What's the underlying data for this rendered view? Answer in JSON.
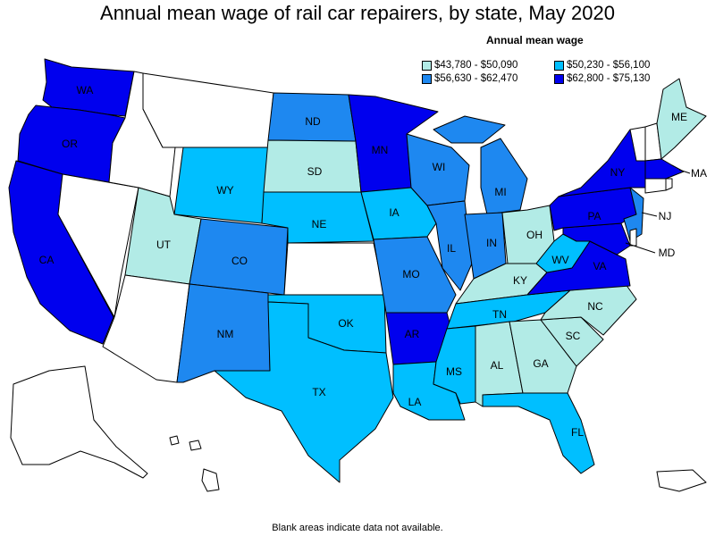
{
  "title": "Annual mean wage of rail car repairers, by state, May 2020",
  "legend": {
    "title": "Annual mean wage",
    "items": [
      {
        "label": "$43,780 - $50,090",
        "color": "#b2ebe6"
      },
      {
        "label": "$50,230 - $56,100",
        "color": "#00bfff"
      },
      {
        "label": "$56,630 - $62,470",
        "color": "#1e88f0"
      },
      {
        "label": "$62,800 - $75,130",
        "color": "#0000ee"
      }
    ]
  },
  "no_data_color": "#ffffff",
  "footnote": "Blank areas indicate data not available.",
  "states": {
    "WA": 3,
    "OR": 3,
    "CA": 3,
    "MN": 3,
    "AR": 3,
    "NY": 3,
    "PA": 3,
    "MA": 3,
    "VA": 3,
    "MD": 3,
    "ND": 2,
    "CO": 2,
    "NM": 2,
    "WI": 2,
    "MI": 2,
    "IL": 2,
    "IN": 2,
    "MO": 2,
    "NJ": 2,
    "WY": 1,
    "NE": 1,
    "IA": 1,
    "OK": 1,
    "TX": 1,
    "LA": 1,
    "MS": 1,
    "TN": 1,
    "WV": 1,
    "FL": 1,
    "UT": 0,
    "SD": 0,
    "OH": 0,
    "KY": 0,
    "AL": 0,
    "GA": 0,
    "SC": 0,
    "NC": 0,
    "ME": 0
  },
  "state_labels": {
    "WA": "WA",
    "OR": "OR",
    "CA": "CA",
    "WY": "WY",
    "UT": "UT",
    "CO": "CO",
    "NM": "NM",
    "ND": "ND",
    "SD": "SD",
    "NE": "NE",
    "OK": "OK",
    "TX": "TX",
    "MN": "MN",
    "IA": "IA",
    "MO": "MO",
    "AR": "AR",
    "LA": "LA",
    "WI": "WI",
    "IL": "IL",
    "MS": "MS",
    "MI": "MI",
    "IN": "IN",
    "KY": "KY",
    "TN": "TN",
    "AL": "AL",
    "OH": "OH",
    "WV": "WV",
    "GA": "GA",
    "FL": "FL",
    "SC": "SC",
    "NC": "NC",
    "VA": "VA",
    "PA": "PA",
    "NY": "NY",
    "ME": "ME",
    "MD": "MD",
    "NJ": "NJ",
    "MA": "MA"
  }
}
